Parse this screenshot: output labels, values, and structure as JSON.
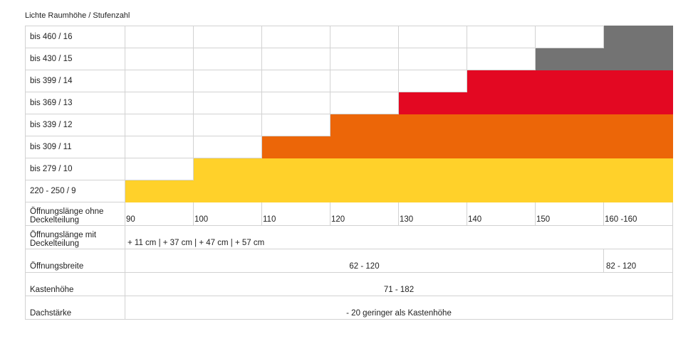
{
  "header": "Lichte Raumhöhe / Stufenzahl",
  "colors": {
    "yellow": "#FFD12A",
    "orange": "#EC6608",
    "red": "#E30822",
    "grey": "#737373"
  },
  "chart_data": {
    "type": "table",
    "title": "Lichte Raumhöhe / Stufenzahl",
    "x_header": "Öffnungslänge ohne Deckelteilung",
    "x_ticks": [
      "90",
      "100",
      "110",
      "120",
      "130",
      "140",
      "150",
      "160 -160"
    ],
    "rows": [
      {
        "label": "bis 460 / 16",
        "start": 7,
        "color": "#737373"
      },
      {
        "label": "bis 430 / 15",
        "start": 6,
        "color": "#737373"
      },
      {
        "label": "bis 399 / 14",
        "start": 5,
        "color": "#E30822"
      },
      {
        "label": "bis 369 / 13",
        "start": 4,
        "color": "#E30822"
      },
      {
        "label": "bis 339 / 12",
        "start": 3,
        "color": "#EC6608"
      },
      {
        "label": "bis 309 / 11",
        "start": 2,
        "color": "#EC6608"
      },
      {
        "label": "bis 279 / 10",
        "start": 1,
        "color": "#FFD12A"
      },
      {
        "label": "220 - 250 / 9",
        "start": 0,
        "color": "#FFD12A"
      }
    ],
    "info_rows": [
      {
        "label": "Öffnungslänge mit Deckelteilung",
        "value": "+ 11 cm | + 37 cm | + 47 cm | + 57 cm"
      },
      {
        "label": "Öffnungsbreite",
        "value": "62 - 120",
        "value2": "82 - 120"
      },
      {
        "label": "Kastenhöhe",
        "value": "71 - 182"
      },
      {
        "label": "Dachstärke",
        "value": "- 20 geringer als Kastenhöhe"
      }
    ]
  }
}
